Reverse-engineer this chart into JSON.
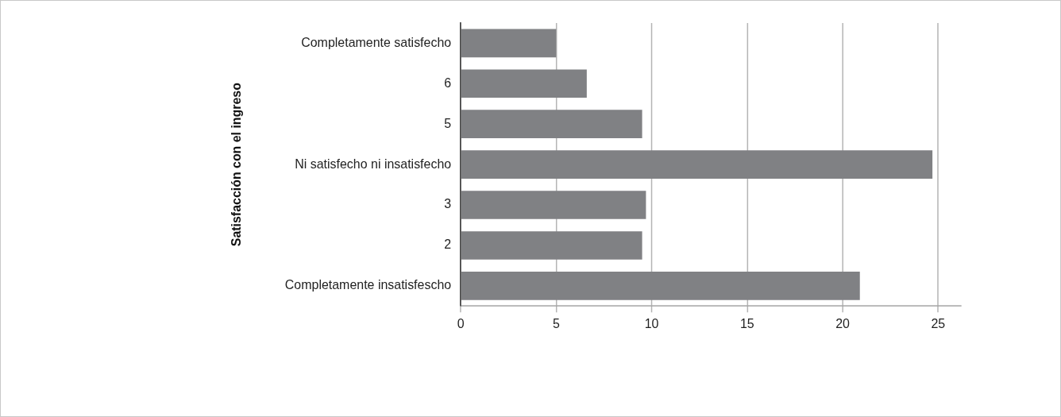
{
  "chart_data": {
    "type": "bar",
    "orientation": "horizontal",
    "ylabel": "Satisfacción con el ingreso",
    "categories": [
      "Completamente satisfecho",
      "6",
      "5",
      "Ni satisfecho ni insatisfecho",
      "3",
      "2",
      "Completamente insatisfescho"
    ],
    "values": [
      5.0,
      6.6,
      9.5,
      24.7,
      9.7,
      9.5,
      20.9
    ],
    "color": "#808184",
    "xlim": [
      0,
      26.2
    ],
    "xticks": [
      0,
      5,
      10,
      15,
      20,
      25
    ],
    "grid": "x"
  }
}
